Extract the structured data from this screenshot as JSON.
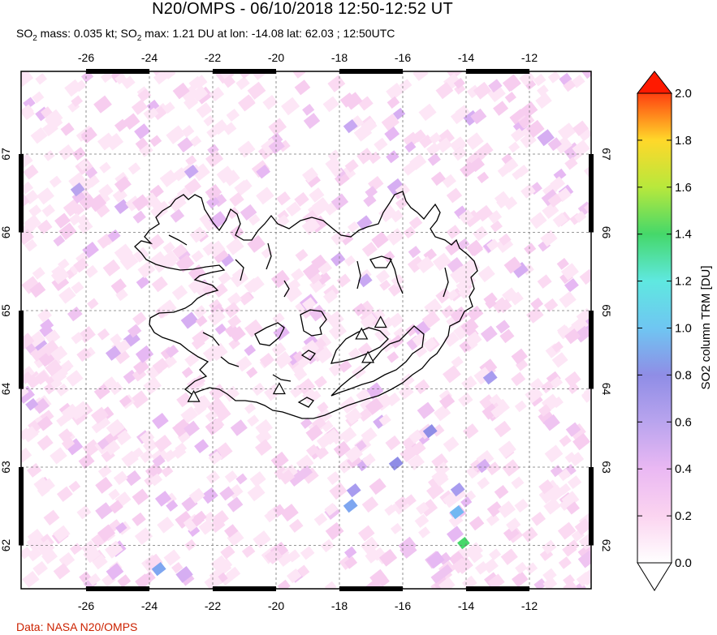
{
  "header": {
    "title": "N20/OMPS - 06/10/2018 12:50-12:52 UT",
    "subtitle_parts": [
      "SO",
      "2",
      " mass: 0.035 kt; SO",
      "2",
      " max: 1.21 DU at lon: -14.08 lat: 62.03 ; 12:50UTC"
    ]
  },
  "footer": {
    "credit": "Data: NASA N20/OMPS"
  },
  "map": {
    "lon_ticks": [
      "-26",
      "-24",
      "-22",
      "-20",
      "-18",
      "-16",
      "-14",
      "-12"
    ],
    "lat_ticks": [
      "67",
      "66",
      "65",
      "64",
      "63",
      "62"
    ],
    "lon_values": [
      -26,
      -24,
      -22,
      -20,
      -18,
      -16,
      -14,
      -12
    ],
    "lat_values": [
      67,
      66,
      65,
      64,
      63,
      62
    ],
    "lon_range": [
      -28.2,
      -10.2
    ],
    "lat_range": [
      61.2,
      68.0
    ],
    "volcano_markers": [
      {
        "lon": -22.6,
        "lat": 63.9
      },
      {
        "lon": -19.9,
        "lat": 64.0
      },
      {
        "lon": -17.3,
        "lat": 64.7
      },
      {
        "lon": -17.1,
        "lat": 64.4
      },
      {
        "lon": -16.7,
        "lat": 64.85
      }
    ],
    "max_point": {
      "lon": -14.08,
      "lat": 62.03,
      "value_du": 1.21
    }
  },
  "colorbar": {
    "label": "SO2 column TRM [DU]",
    "ticks": [
      "0.0",
      "0.2",
      "0.4",
      "0.6",
      "0.8",
      "1.0",
      "1.2",
      "1.4",
      "1.6",
      "1.8",
      "2.0"
    ],
    "min": 0.0,
    "max": 2.0,
    "colors": [
      "#ffffff",
      "#fbd4f0",
      "#e9b5f2",
      "#b9a4ee",
      "#8f8de6",
      "#6fc6f2",
      "#5fe8e0",
      "#45d86a",
      "#b8e83c",
      "#ffe02a",
      "#ff9a1a",
      "#ff3010"
    ]
  }
}
